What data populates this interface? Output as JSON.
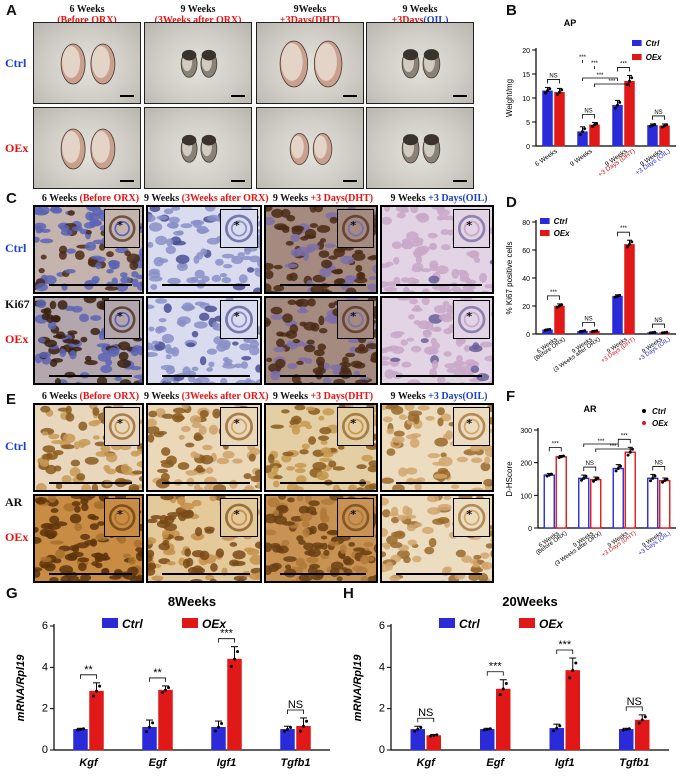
{
  "panels": {
    "A": {
      "label": "A",
      "columns": [
        {
          "line1": "6 Weeks",
          "line2": "(Before ORX)"
        },
        {
          "line1": "9 Weeks",
          "line2": "(3Weeks after ORX)"
        },
        {
          "line1": "9Weeks",
          "line2a": "+3Days",
          "line2b": "(DHT)"
        },
        {
          "line1": "9 Weeks",
          "line2a": "+3Days",
          "line2b": "(OIL)"
        }
      ],
      "rows": [
        "Ctrl",
        "OEx"
      ]
    },
    "C": {
      "label": "C",
      "columns": [
        {
          "pre": "6 Weeks ",
          "red": "(Before ORX)"
        },
        {
          "pre": "9 Weeks ",
          "red": "(3Weeks after ORX)"
        },
        {
          "pre": "9 Weeks ",
          "red": "+3 Days(DHT)"
        },
        {
          "pre": "9 Weeks ",
          "blue": "+3 Days(OIL)"
        }
      ],
      "rows": [
        "Ctrl",
        "OEx"
      ],
      "marker": "Ki67",
      "star": "*"
    },
    "E": {
      "label": "E",
      "columns": [
        {
          "pre": "6 Weeks ",
          "red": "(Before ORX)"
        },
        {
          "pre": "9 Weeks ",
          "red": "(3Weeks after ORX)"
        },
        {
          "pre": "9 Weeks ",
          "red": "+3 Days(DHT)"
        },
        {
          "pre": "9 Weeks ",
          "blue": "+3 Days(OIL)"
        }
      ],
      "rows": [
        "Ctrl",
        "OEx"
      ],
      "marker": "AR",
      "star": "*"
    },
    "B_label": "B",
    "D_label": "D",
    "F_label": "F",
    "G_label": "G",
    "H_label": "H"
  },
  "colors": {
    "ctrl": "#2a2ad8",
    "oex": "#e01818",
    "ctrl_label": "#1a3fcf",
    "oex_label": "#e11111"
  },
  "chart_data": [
    {
      "id": "B",
      "type": "bar",
      "title": "AP",
      "ylabel": "Weight/mg",
      "ylim": [
        0,
        20
      ],
      "yticks": [
        0,
        5,
        10,
        15,
        20
      ],
      "categories": [
        "6 Weeks",
        "9 Weeks",
        "9 Weeks +3 Days (DHT)",
        "9 Weeks +3 Days (OIL)"
      ],
      "category_lines": [
        [
          "6 Weeks"
        ],
        [
          "9 Weeks"
        ],
        [
          "9 Weeks",
          "+3 Days (DHT)"
        ],
        [
          "9 Weeks",
          "+3 Days (OIL)"
        ]
      ],
      "series": [
        {
          "name": "Ctrl",
          "values": [
            11.5,
            3.0,
            8.5,
            4.3
          ],
          "errors": [
            0.7,
            1.0,
            1.0,
            0.3
          ]
        },
        {
          "name": "OEx",
          "values": [
            11.2,
            4.4,
            13.5,
            4.2
          ],
          "errors": [
            0.8,
            0.5,
            1.2,
            0.4
          ]
        }
      ],
      "significance": [
        {
          "text": "NS",
          "pos": "within 6 Weeks"
        },
        {
          "text": "***",
          "pos": "Ctrl 6 Weeks vs Ctrl 9 Weeks"
        },
        {
          "text": "***",
          "pos": "OEx 6 Weeks vs OEx 9 Weeks"
        },
        {
          "text": "NS",
          "pos": "within 9 Weeks"
        },
        {
          "text": "***",
          "pos": "Ctrl 9 Weeks vs Ctrl DHT"
        },
        {
          "text": "***",
          "pos": "OEx 9 Weeks vs OEx DHT"
        },
        {
          "text": "***",
          "pos": "within DHT"
        },
        {
          "text": "NS",
          "pos": "within OIL"
        }
      ],
      "legend": "top-right",
      "legend_style": "square"
    },
    {
      "id": "D",
      "type": "bar",
      "title": "",
      "ylabel": "% Ki67 positive cells",
      "ylim": [
        0,
        80
      ],
      "yticks": [
        0,
        20,
        40,
        60,
        80
      ],
      "categories": [
        "6 Weeks (Before ORX)",
        "9 Weeks (3 Weeks after ORX)",
        "9 Weeks +3 Days (DHT)",
        "9 Weeks +3 Days (OIL)"
      ],
      "category_lines": [
        [
          "6 Weeks",
          "(Before ORX)"
        ],
        [
          "9 Weeks",
          "(3 Weeks after ORX)"
        ],
        [
          "9 Weeks",
          "+3 Days (DHT)"
        ],
        [
          "9 Weeks",
          "+3 Days (OIL)"
        ]
      ],
      "series": [
        {
          "name": "Ctrl",
          "values": [
            3,
            2,
            27,
            1
          ],
          "errors": [
            0.5,
            0.5,
            1,
            0.4
          ]
        },
        {
          "name": "OEx",
          "values": [
            20,
            2,
            64,
            1
          ],
          "errors": [
            1.5,
            0.5,
            3,
            0.4
          ]
        }
      ],
      "significance": [
        {
          "text": "***",
          "pos": "6 Weeks"
        },
        {
          "text": "NS",
          "pos": "9 Weeks"
        },
        {
          "text": "***",
          "pos": "DHT"
        },
        {
          "text": "NS",
          "pos": "OIL"
        }
      ],
      "legend": "top-left",
      "legend_style": "square"
    },
    {
      "id": "F",
      "type": "bar",
      "title": "AR",
      "ylabel": "D-HScore",
      "ylim": [
        0,
        300
      ],
      "yticks": [
        0,
        100,
        200,
        300
      ],
      "categories": [
        "6 Weeks (Before ORX)",
        "9 Weeks (3 Weeks after ORX)",
        "9 Weeks +3 Days (DHT)",
        "9 Weeks +3 Days (OIL)"
      ],
      "category_lines": [
        [
          "6 Weeks",
          "(Before ORX)"
        ],
        [
          "9 Weeks",
          "(3 Weeks after ORX)"
        ],
        [
          "9 Weeks",
          "+3 Days (DHT)"
        ],
        [
          "9 Weeks",
          "+3 Days (OIL)"
        ]
      ],
      "series": [
        {
          "name": "Ctrl",
          "values": [
            162,
            152,
            182,
            152
          ],
          "errors": [
            5,
            10,
            12,
            12
          ]
        },
        {
          "name": "OEx",
          "values": [
            218,
            148,
            232,
            145
          ],
          "errors": [
            4,
            8,
            15,
            8
          ]
        }
      ],
      "significance": [
        {
          "text": "***",
          "pos": "6 Weeks"
        },
        {
          "text": "NS",
          "pos": "9 Weeks"
        },
        {
          "text": "***",
          "pos": "9 Weeks vs DHT (Ctrl)"
        },
        {
          "text": "***",
          "pos": "9 Weeks vs DHT (OEx)"
        },
        {
          "text": "***",
          "pos": "DHT"
        },
        {
          "text": "NS",
          "pos": "OIL"
        }
      ],
      "legend": "top-right",
      "legend_style": "dot",
      "bar_style": "open"
    },
    {
      "id": "G",
      "type": "bar",
      "title": "8Weeks",
      "ylabel": "mRNA/Rpl19",
      "ylim": [
        0,
        6
      ],
      "yticks": [
        0,
        2,
        4,
        6
      ],
      "categories": [
        "Kgf",
        "Egf",
        "Igf1",
        "Tgfb1"
      ],
      "series": [
        {
          "name": "Ctrl",
          "values": [
            1.0,
            1.1,
            1.1,
            1.0
          ],
          "errors": [
            0.05,
            0.35,
            0.3,
            0.15
          ]
        },
        {
          "name": "OEx",
          "values": [
            2.85,
            2.9,
            4.4,
            1.15
          ],
          "errors": [
            0.4,
            0.2,
            0.6,
            0.4
          ]
        }
      ],
      "significance": [
        "**",
        "**",
        "***",
        "NS"
      ],
      "legend": "top"
    },
    {
      "id": "H",
      "type": "bar",
      "title": "20Weeks",
      "ylabel": "mRNA/Rpl19",
      "ylim": [
        0,
        6
      ],
      "yticks": [
        0,
        2,
        4,
        6
      ],
      "categories": [
        "Kgf",
        "Egf",
        "Igf1",
        "Tgfb1"
      ],
      "series": [
        {
          "name": "Ctrl",
          "values": [
            1.0,
            1.0,
            1.05,
            1.0
          ],
          "errors": [
            0.15,
            0.05,
            0.2,
            0.05
          ]
        },
        {
          "name": "OEx",
          "values": [
            0.7,
            2.95,
            3.85,
            1.45
          ],
          "errors": [
            0.05,
            0.45,
            0.6,
            0.25
          ]
        }
      ],
      "significance": [
        "NS",
        "***",
        "***",
        "NS"
      ],
      "legend": "top"
    }
  ]
}
